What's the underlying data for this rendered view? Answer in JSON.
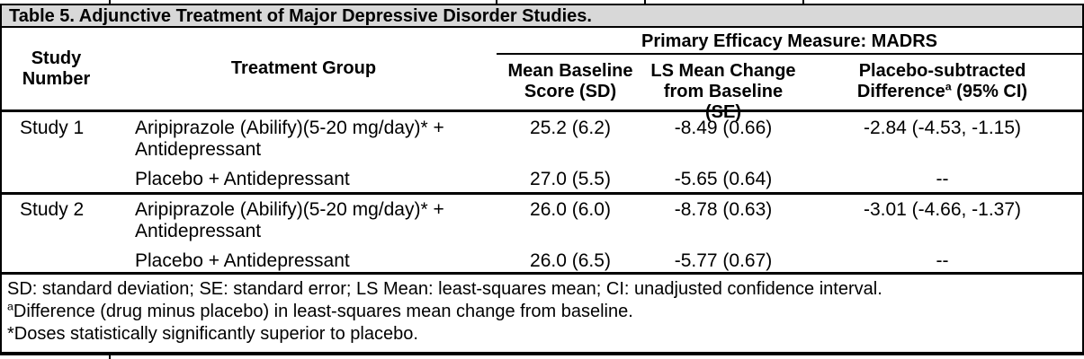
{
  "title": "Table 5. Adjunctive Treatment of Major Depressive Disorder Studies.",
  "header": {
    "study_line1": "Study",
    "study_line2": "Number",
    "treatment": "Treatment Group",
    "spanner": "Primary Efficacy Measure: MADRS",
    "mean_line1": "Mean Baseline",
    "mean_line2": "Score (SD)",
    "ls_line1": "LS Mean Change",
    "ls_line2": "from Baseline (SE)",
    "diff_line1": "Placebo-subtracted",
    "diff_line2_pre": "Difference",
    "diff_sup": "a",
    "diff_line2_post": " (95% CI)"
  },
  "rows": [
    {
      "study": "Study 1",
      "treatment_line1": "Aripiprazole (Abilify)(5-20 mg/day)* +",
      "treatment_line2": "Antidepressant",
      "mean_baseline": "25.2 (6.2)",
      "ls_mean_change": "-8.49 (0.66)",
      "placebo_subtracted_diff": "-2.84 (-4.53, -1.15)"
    },
    {
      "study": "",
      "treatment_line1": "Placebo + Antidepressant",
      "treatment_line2": "",
      "mean_baseline": "27.0 (5.5)",
      "ls_mean_change": "-5.65 (0.64)",
      "placebo_subtracted_diff": "--"
    },
    {
      "study": "Study 2",
      "treatment_line1": "Aripiprazole (Abilify)(5-20 mg/day)* +",
      "treatment_line2": "Antidepressant",
      "mean_baseline": "26.0 (6.0)",
      "ls_mean_change": "-8.78 (0.63)",
      "placebo_subtracted_diff": "-3.01 (-4.66, -1.37)"
    },
    {
      "study": "",
      "treatment_line1": "Placebo + Antidepressant",
      "treatment_line2": "",
      "mean_baseline": "26.0 (6.5)",
      "ls_mean_change": "-5.77 (0.67)",
      "placebo_subtracted_diff": "--"
    }
  ],
  "footnotes": {
    "abbreviations": "SD: standard deviation; SE: standard error; LS Mean: least-squares mean; CI: unadjusted confidence interval.",
    "difference_sup": "a",
    "difference": "Difference (drug minus placebo) in least-squares mean change from baseline.",
    "doses": "*Doses statistically significantly superior to placebo."
  },
  "colors": {
    "title_bg": "#d8d8d8",
    "border": "#000000",
    "text": "#000000",
    "background": "#ffffff"
  }
}
